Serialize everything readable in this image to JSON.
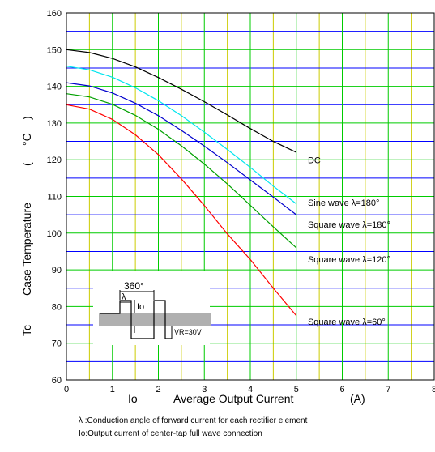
{
  "chart_data": {
    "type": "line",
    "xlabel_prefix": "Io",
    "xlabel": "Average Output Current",
    "xlabel_unit": "(A)",
    "ylabel_prefix": "Tc",
    "ylabel": "Case Temperature",
    "ylabel_unit": "(",
    "ylabel_unit2": "°C",
    "ylabel_unit3": ")",
    "xlim": [
      0,
      8
    ],
    "ylim": [
      60,
      160
    ],
    "x_ticks": [
      "0",
      "1",
      "2",
      "3",
      "4",
      "5",
      "6",
      "7",
      "8"
    ],
    "y_ticks": [
      "60",
      "70",
      "80",
      "90",
      "100",
      "110",
      "120",
      "130",
      "140",
      "150",
      "160"
    ],
    "grid": true,
    "grid_colors": {
      "major": "#00cc00",
      "minor": "#0000ff",
      "minor_vertical": "#cccc00"
    },
    "series": [
      {
        "name": "DC",
        "color": "#000000",
        "x": [
          0,
          0.5,
          1,
          1.5,
          2,
          2.5,
          3,
          3.5,
          4,
          4.5,
          5
        ],
        "y": [
          150,
          149.2,
          147.6,
          145.3,
          142.4,
          139.2,
          135.8,
          132.2,
          128.5,
          125.0,
          122.0
        ]
      },
      {
        "name": "Sine wave λ=180°",
        "color": "#00e5ee",
        "x": [
          0,
          0.5,
          1,
          1.5,
          2,
          2.5,
          3,
          3.5,
          4,
          4.5,
          5
        ],
        "y": [
          145.5,
          144.5,
          142.5,
          139.6,
          136.1,
          132.0,
          127.5,
          122.8,
          117.9,
          112.8,
          108.0
        ]
      },
      {
        "name": "Square wave λ=180°",
        "color": "#0000cc",
        "x": [
          0,
          0.5,
          1,
          1.5,
          2,
          2.5,
          3,
          3.5,
          4,
          4.5,
          5
        ],
        "y": [
          141,
          140.1,
          138.2,
          135.4,
          132.0,
          128.0,
          123.7,
          119.2,
          114.5,
          109.8,
          105.0
        ]
      },
      {
        "name": "Square wave λ=120°",
        "color": "#00a000",
        "x": [
          0,
          0.5,
          1,
          1.5,
          2,
          2.5,
          3,
          3.5,
          4,
          4.5,
          5
        ],
        "y": [
          138,
          137.1,
          135.1,
          132.1,
          128.3,
          123.8,
          118.8,
          113.4,
          107.6,
          101.7,
          96.0
        ]
      },
      {
        "name": "Square wave λ=60°",
        "color": "#ff0000",
        "x": [
          0,
          0.5,
          1,
          1.5,
          2,
          2.5,
          3,
          3.5,
          4,
          4.5,
          5
        ],
        "y": [
          135,
          133.8,
          131.0,
          126.8,
          121.4,
          114.8,
          107.5,
          99.8,
          92.8,
          85.0,
          77.5
        ]
      }
    ],
    "curve_labels": [
      {
        "text": "DC",
        "x": 5.25,
        "y": 119
      },
      {
        "text": "Sine wave",
        "lambda": "λ=180°",
        "x": 5.25,
        "y": 107.5
      },
      {
        "text": "Square wave",
        "lambda": "λ=180°",
        "x": 5.25,
        "y": 101.5
      },
      {
        "text": "Square wave",
        "lambda": "λ=120°",
        "x": 5.25,
        "y": 92
      },
      {
        "text": "Square wave",
        "lambda": "λ=60°",
        "x": 5.25,
        "y": 75
      }
    ],
    "inset": {
      "period_label": "360°",
      "lambda_label": "λ",
      "io_label": "Io",
      "vr_label": "VR=30V"
    },
    "footnotes": [
      "λ :Conduction angle of forward current for each rectifier element",
      "Io:Output current of center-tap full wave connection"
    ]
  }
}
